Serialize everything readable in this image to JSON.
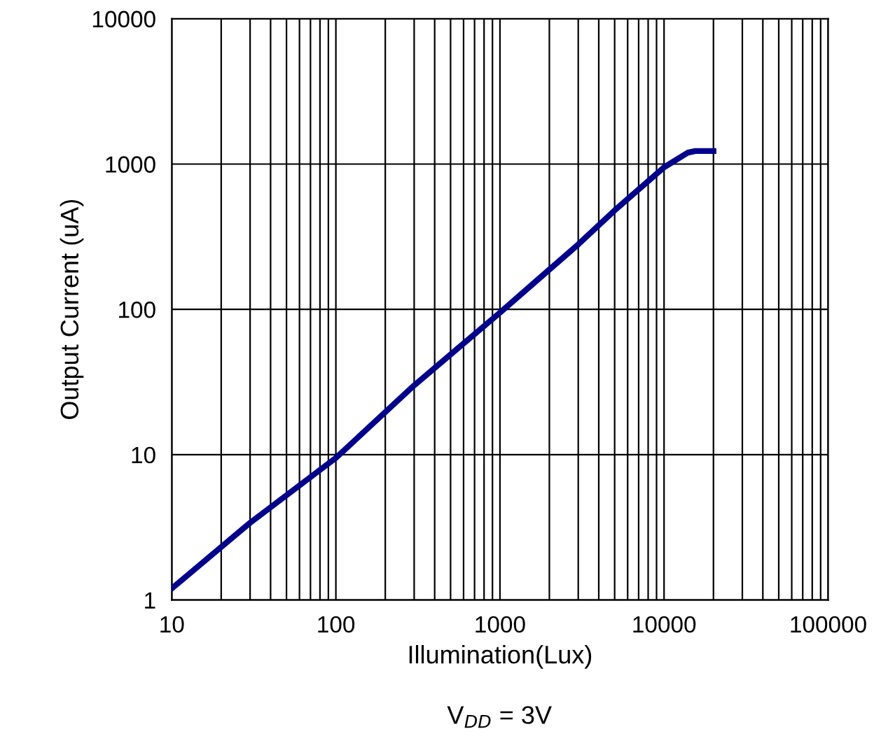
{
  "chart_data": {
    "type": "line",
    "xlabel": "Illumination(Lux)",
    "ylabel": "Output Current (uA)",
    "annotations": [
      "V$_{DD}$ = 3V"
    ],
    "log": "xy",
    "grid": true,
    "marker": "none",
    "line_style": "solid",
    "xlim": [
      10,
      100000
    ],
    "ylim": [
      1,
      10000
    ],
    "xticks": [
      10,
      {
        "value": 20,
        "label": null
      },
      {
        "value": 30,
        "label": null
      },
      {
        "value": 40,
        "label": null
      },
      {
        "value": 50,
        "label": null
      },
      {
        "value": 60,
        "label": null
      },
      {
        "value": 70,
        "label": null
      },
      {
        "value": 80,
        "label": null
      },
      {
        "value": 90,
        "label": null
      },
      100,
      {
        "value": 200,
        "label": null
      },
      {
        "value": 300,
        "label": null
      },
      {
        "value": 400,
        "label": null
      },
      {
        "value": 500,
        "label": null
      },
      {
        "value": 600,
        "label": null
      },
      {
        "value": 700,
        "label": null
      },
      {
        "value": 800,
        "label": null
      },
      {
        "value": 900,
        "label": null
      },
      1000,
      {
        "value": 2000,
        "label": null
      },
      {
        "value": 3000,
        "label": null
      },
      {
        "value": 4000,
        "label": null
      },
      {
        "value": 5000,
        "label": null
      },
      {
        "value": 6000,
        "label": null
      },
      {
        "value": 7000,
        "label": null
      },
      {
        "value": 8000,
        "label": null
      },
      {
        "value": 9000,
        "label": null
      },
      10000,
      {
        "value": 20000,
        "label": null
      },
      {
        "value": 30000,
        "label": null
      },
      {
        "value": 40000,
        "label": null
      },
      {
        "value": 50000,
        "label": null
      },
      {
        "value": 60000,
        "label": null
      },
      {
        "value": 70000,
        "label": null
      },
      {
        "value": 80000,
        "label": null
      },
      {
        "value": 90000,
        "label": null
      },
      100000
    ],
    "yticks": [
      1,
      10,
      100,
      1000,
      10000
    ],
    "series": [
      {
        "color": "#00008b",
        "x": [
          10,
          30,
          100,
          300,
          1000,
          3000,
          5000,
          10000,
          14000,
          15500,
          20000
        ],
        "values": [
          1.2,
          3.4,
          9.5,
          30,
          95,
          280,
          480,
          950,
          1200,
          1230,
          1230
        ]
      }
    ]
  }
}
